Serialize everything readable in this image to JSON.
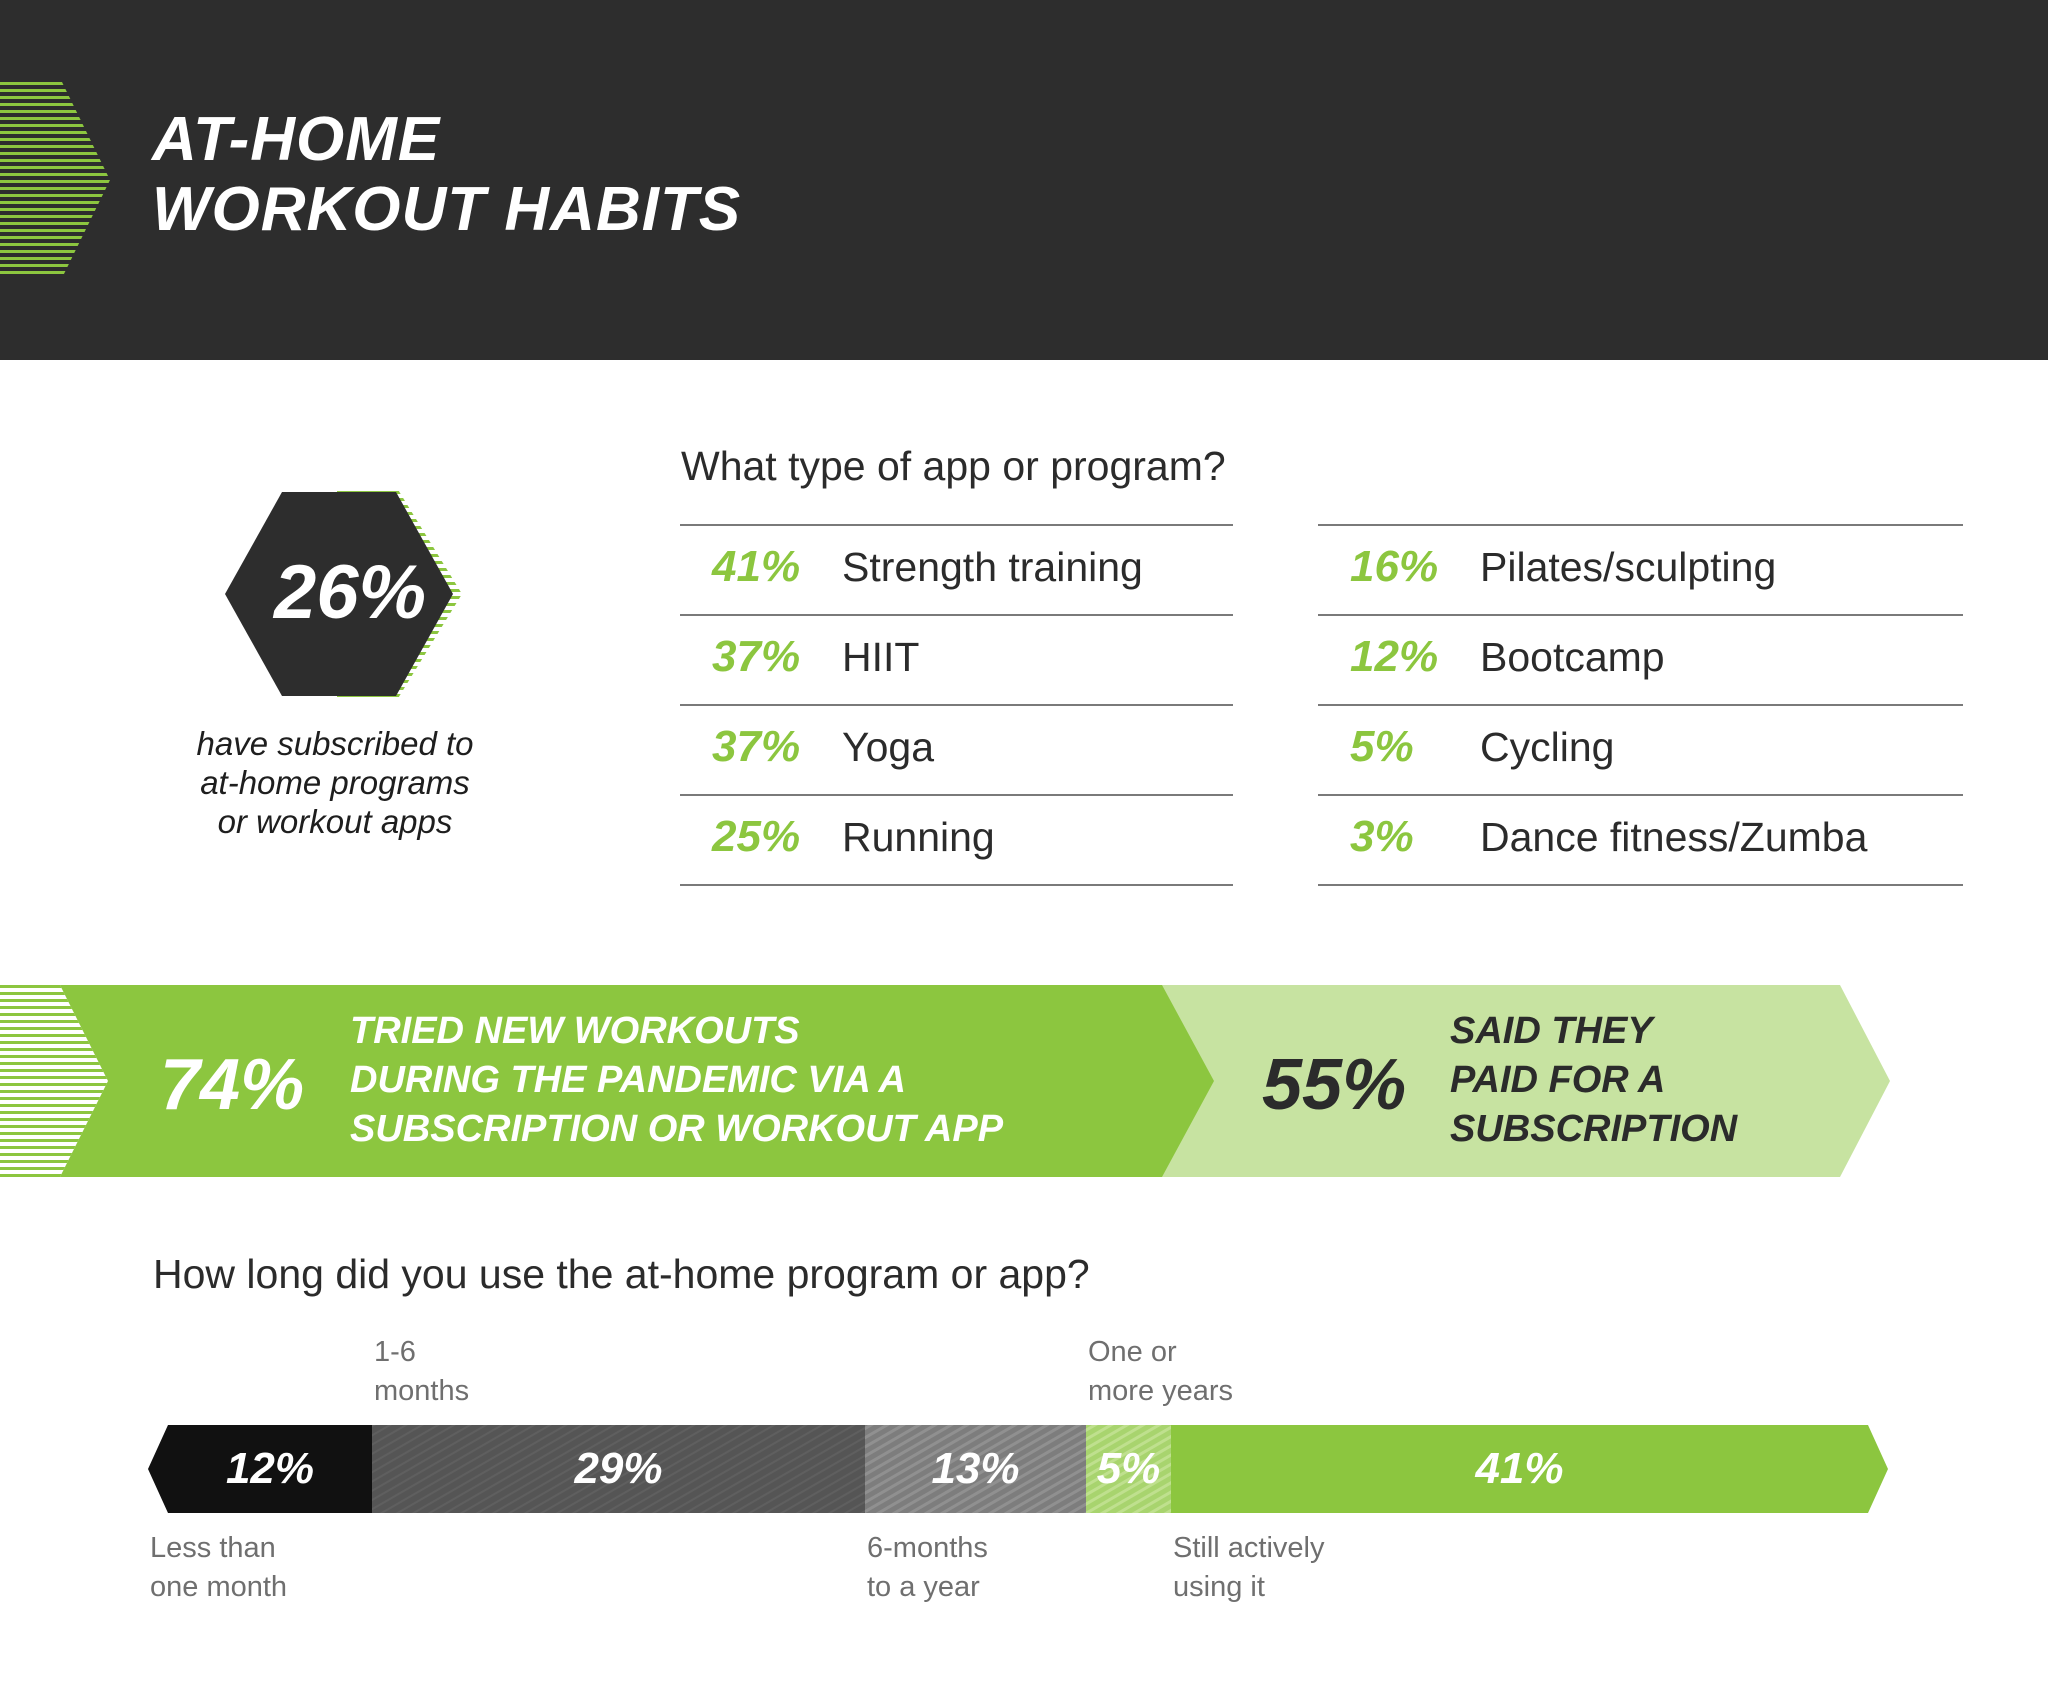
{
  "header": {
    "title_line1": "AT-HOME",
    "title_line2": "WORKOUT HABITS"
  },
  "subscribed": {
    "value": "26%",
    "caption_line1": "have subscribed to",
    "caption_line2": "at-home programs",
    "caption_line3": "or workout apps"
  },
  "app_types": {
    "question": "What type of app or program?",
    "left": [
      {
        "pct": "41%",
        "label": "Strength training"
      },
      {
        "pct": "37%",
        "label": "HIIT"
      },
      {
        "pct": "37%",
        "label": "Yoga"
      },
      {
        "pct": "25%",
        "label": "Running"
      }
    ],
    "right": [
      {
        "pct": "16%",
        "label": "Pilates/sculpting"
      },
      {
        "pct": "12%",
        "label": "Bootcamp"
      },
      {
        "pct": "5%",
        "label": "Cycling"
      },
      {
        "pct": "3%",
        "label": "Dance fitness/Zumba"
      }
    ]
  },
  "banner_tried": {
    "pct": "74%",
    "line1": "TRIED NEW WORKOUTS",
    "line2": "DURING THE PANDEMIC VIA A",
    "line3": "SUBSCRIPTION OR WORKOUT APP"
  },
  "banner_paid": {
    "pct": "55%",
    "line1": "SAID THEY",
    "line2": "PAID FOR A",
    "line3": "SUBSCRIPTION"
  },
  "duration": {
    "question": "How long did you use the at-home program or app?",
    "segments": [
      {
        "label": "12%",
        "value": 12,
        "caption_line1": "Less than",
        "caption_line2": "one month"
      },
      {
        "label": "29%",
        "value": 29,
        "caption_line1": "1-6",
        "caption_line2": "months"
      },
      {
        "label": "13%",
        "value": 13,
        "caption_line1": "6-months",
        "caption_line2": "to a year"
      },
      {
        "label": "5%",
        "value": 5,
        "caption_line1": "One or",
        "caption_line2": "more years"
      },
      {
        "label": "41%",
        "value": 41,
        "caption_line1": "Still actively",
        "caption_line2": "using it"
      }
    ]
  },
  "colors": {
    "dark": "#2d2d2d",
    "green": "#8cc63f",
    "light_green": "#c7e3a1",
    "gray_dark": "#555555",
    "gray_mid": "#808080"
  }
}
